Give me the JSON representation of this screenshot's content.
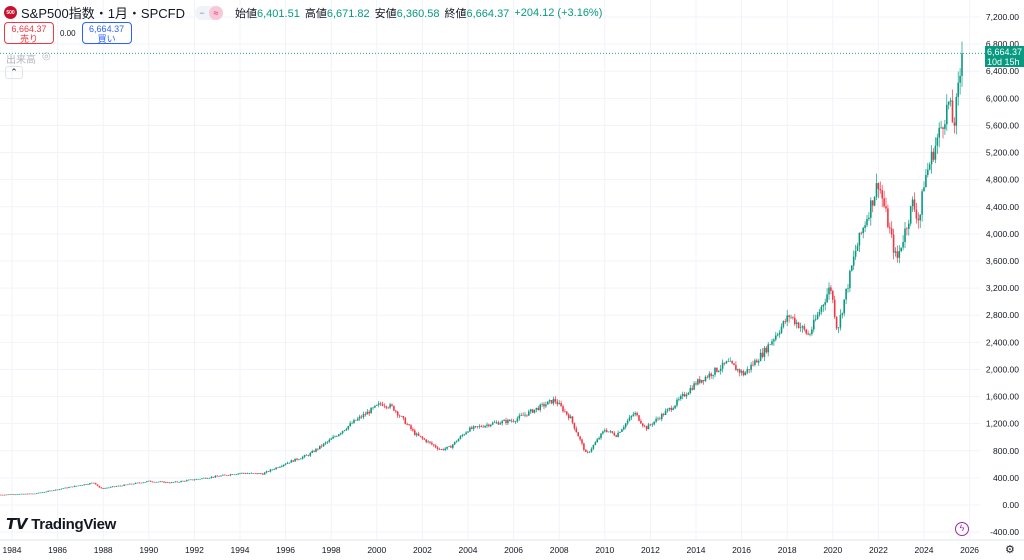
{
  "header": {
    "logo_text": "500",
    "symbol": "S&P500指数・1月・SPCFD",
    "toggle": [
      "−",
      "≈"
    ],
    "open_label": "始値",
    "open": "6,401.51",
    "high_label": "高値",
    "high": "6,671.82",
    "low_label": "安値",
    "low": "6,360.58",
    "close_label": "終値",
    "close": "6,664.37",
    "change": "+204.12 (+3.16%)"
  },
  "trade": {
    "sell_price": "6,664.37",
    "sell_label": "売り",
    "spread": "0.00",
    "buy_price": "6,664.37",
    "buy_label": "買い"
  },
  "volume_label": "出来高",
  "collapse_icon": "chevron-up-icon",
  "price_label": {
    "price": "6,664.37",
    "countdown": "10d 15h"
  },
  "branding": "TradingView",
  "colors": {
    "up": "#089981",
    "down": "#f23645",
    "grid": "#f0f3fa",
    "price_line": "#089981"
  },
  "chart_data": {
    "type": "candlestick",
    "interval": "1 month",
    "y_ticks": [
      "7,200.00",
      "6,800.00",
      "6,400.00",
      "6,000.00",
      "5,600.00",
      "5,200.00",
      "4,800.00",
      "4,400.00",
      "4,000.00",
      "3,600.00",
      "3,200.00",
      "2,800.00",
      "2,400.00",
      "2,000.00",
      "1,600.00",
      "1,200.00",
      "800.00",
      "400.00",
      "0.00",
      "-400.00"
    ],
    "x_ticks": [
      "1984",
      "1986",
      "1988",
      "1990",
      "1992",
      "1994",
      "1996",
      "1998",
      "2000",
      "2002",
      "2004",
      "2006",
      "2008",
      "2010",
      "2012",
      "2014",
      "2016",
      "2018",
      "2020",
      "2022",
      "2024",
      "2026"
    ],
    "ylim": [
      -400,
      7200
    ],
    "xlim": [
      1983.5,
      2026.4
    ],
    "grid": true,
    "last_close": 6664.37,
    "close_path": [
      [
        1983.0,
        145
      ],
      [
        1985.0,
        167
      ],
      [
        1987.6,
        330
      ],
      [
        1987.9,
        240
      ],
      [
        1990.0,
        350
      ],
      [
        1991.0,
        330
      ],
      [
        1994.0,
        470
      ],
      [
        1995.0,
        460
      ],
      [
        1996.0,
        615
      ],
      [
        1997.0,
        740
      ],
      [
        1998.0,
        970
      ],
      [
        1999.0,
        1230
      ],
      [
        2000.2,
        1500
      ],
      [
        2000.7,
        1440
      ],
      [
        2001.7,
        1040
      ],
      [
        2002.8,
        815
      ],
      [
        2003.2,
        850
      ],
      [
        2004.0,
        1110
      ],
      [
        2005.0,
        1200
      ],
      [
        2006.0,
        1250
      ],
      [
        2007.0,
        1420
      ],
      [
        2007.8,
        1550
      ],
      [
        2008.5,
        1280
      ],
      [
        2009.2,
        740
      ],
      [
        2010.0,
        1110
      ],
      [
        2010.5,
        1030
      ],
      [
        2011.3,
        1360
      ],
      [
        2011.8,
        1130
      ],
      [
        2013.0,
        1460
      ],
      [
        2014.0,
        1800
      ],
      [
        2015.4,
        2100
      ],
      [
        2016.1,
        1930
      ],
      [
        2017.0,
        2270
      ],
      [
        2018.1,
        2800
      ],
      [
        2018.95,
        2500
      ],
      [
        2019.9,
        3230
      ],
      [
        2020.2,
        2580
      ],
      [
        2021.0,
        3750
      ],
      [
        2022.0,
        4770
      ],
      [
        2022.8,
        3600
      ],
      [
        2023.5,
        4450
      ],
      [
        2023.8,
        4190
      ],
      [
        2024.0,
        4770
      ],
      [
        2025.1,
        5950
      ],
      [
        2025.3,
        5570
      ],
      [
        2025.7,
        6664.37
      ]
    ]
  }
}
